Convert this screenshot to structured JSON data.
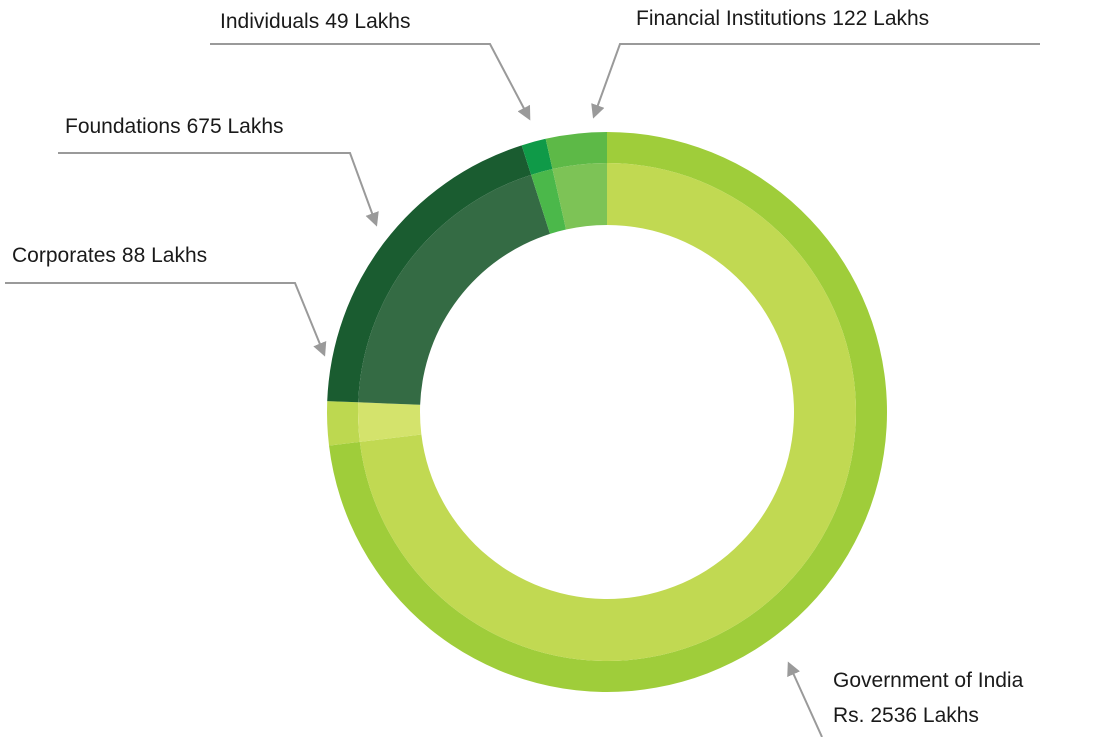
{
  "chart_data": {
    "type": "donut",
    "categories": [
      "Government of India",
      "Corporates",
      "Foundations",
      "Individuals",
      "Financial Institutions"
    ],
    "values": [
      2536,
      88,
      675,
      49,
      122
    ],
    "value_labels": [
      "Rs. 2536 Lakhs",
      "88 Lakhs",
      "675 Lakhs",
      "49 Lakhs",
      "122 Lakhs"
    ],
    "colors": [
      "#9fcd3a",
      "#bdd850",
      "#1a5c30",
      "#0f9a48",
      "#5db947"
    ],
    "inner_colors": [
      "#c1d952",
      "#d4e36c",
      "#346b44",
      "#4bb84a",
      "#7dc356"
    ]
  }
}
